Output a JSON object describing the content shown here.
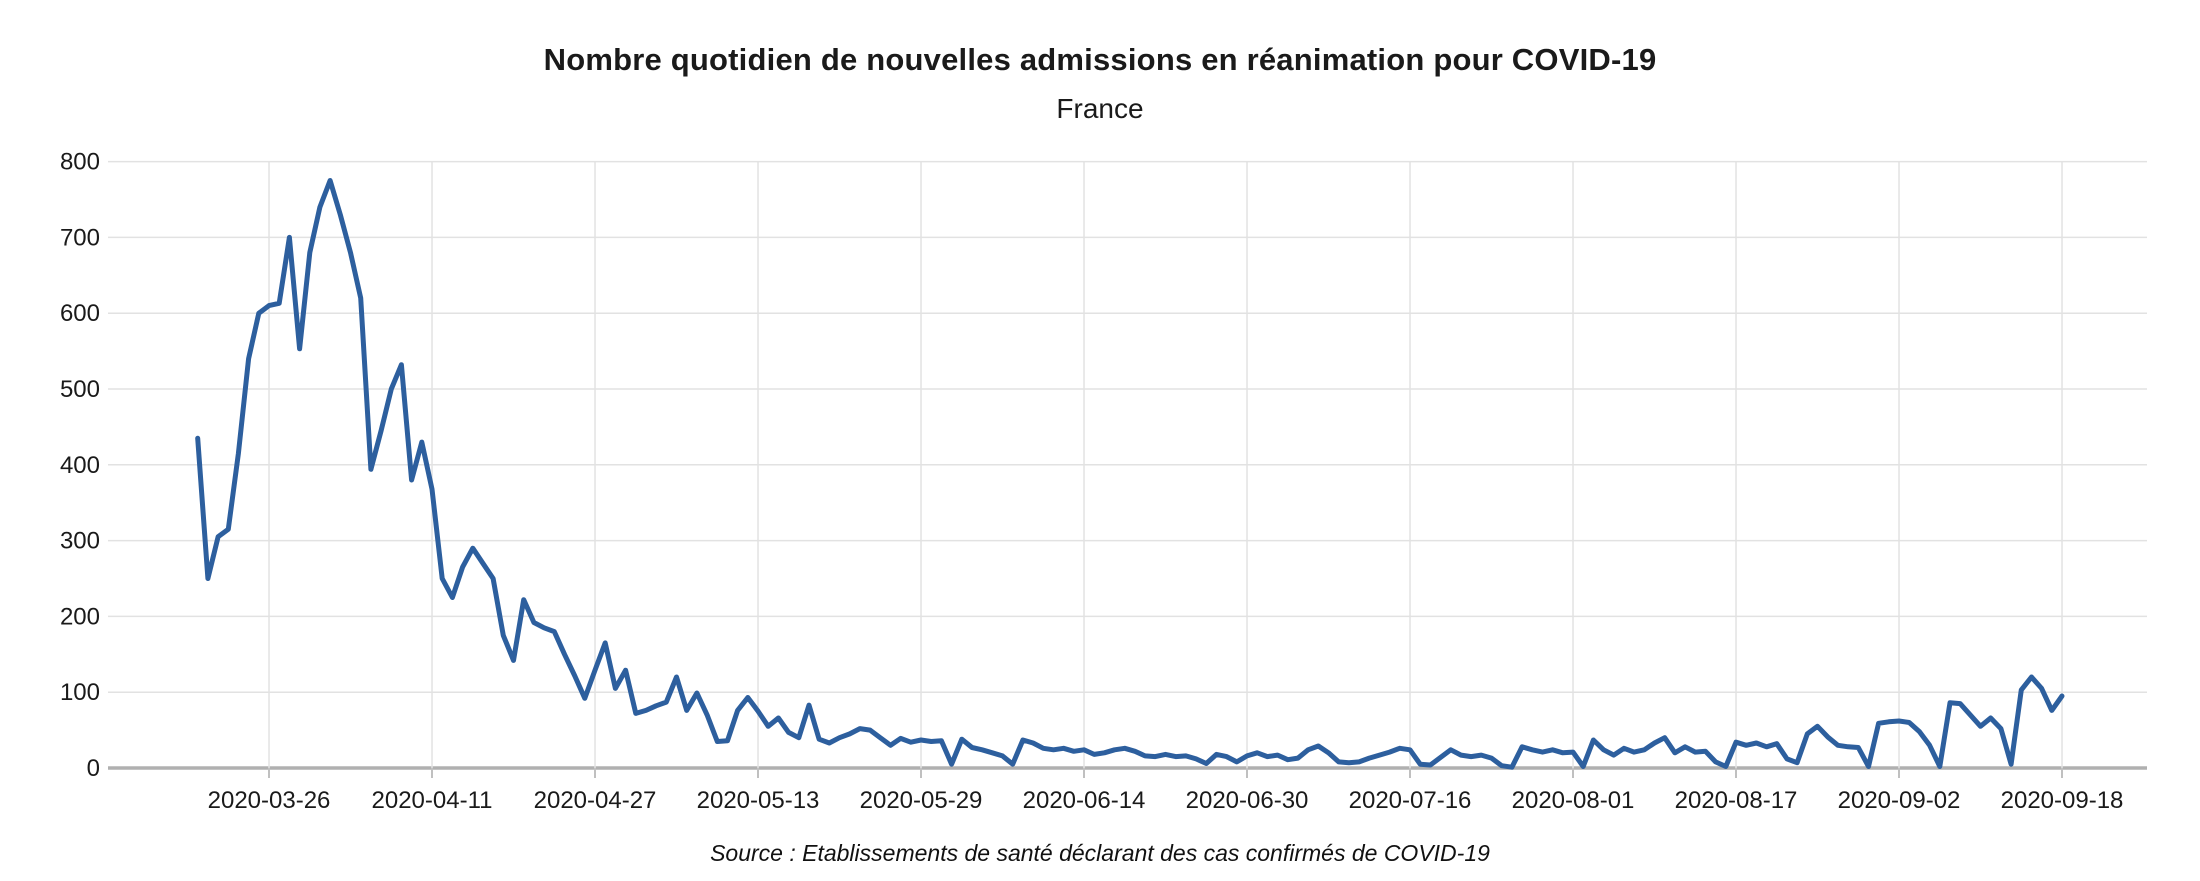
{
  "chart_data": {
    "type": "line",
    "title": "Nombre quotidien de nouvelles admissions en réanimation pour COVID-19",
    "subtitle": "France",
    "source": "Source : Etablissements de santé déclarant des cas confirmés de COVID-19",
    "ylim": [
      0,
      800
    ],
    "grid": true,
    "legend_position": "none",
    "line_color": "#2d5f9e",
    "grid_color": "#e2e2e2",
    "axis_color": "#b0b0b0",
    "tick_color": "#c0c0c0",
    "text_color": "#1a1a1a",
    "y_tick_labels": [
      0,
      100,
      200,
      300,
      400,
      500,
      600,
      700,
      800
    ],
    "x_tick_labels": [
      "2020-03-26",
      "2020-04-11",
      "2020-04-27",
      "2020-05-13",
      "2020-05-29",
      "2020-06-14",
      "2020-06-30",
      "2020-07-16",
      "2020-08-01",
      "2020-08-17",
      "2020-09-02",
      "2020-09-18"
    ],
    "series": [
      {
        "start_date": "2020-03-19",
        "end_date": "2020-09-18",
        "frequency": "daily",
        "values": [
          435,
          250,
          305,
          315,
          415,
          540,
          600,
          610,
          613,
          700,
          553,
          680,
          740,
          775,
          730,
          680,
          620,
          394,
          445,
          500,
          532,
          380,
          430,
          368,
          250,
          225,
          265,
          290,
          270,
          250,
          175,
          142,
          222,
          192,
          185,
          180,
          150,
          122,
          92,
          129,
          165,
          105,
          129,
          72,
          76,
          82,
          87,
          120,
          76,
          99,
          70,
          35,
          36,
          76,
          93,
          75,
          55,
          66,
          47,
          40,
          83,
          38,
          33,
          40,
          45,
          52,
          50,
          40,
          30,
          39,
          34,
          37,
          35,
          36,
          5,
          38,
          27,
          24,
          20,
          16,
          5,
          37,
          33,
          26,
          24,
          26,
          22,
          24,
          18,
          20,
          24,
          26,
          22,
          16,
          15,
          18,
          15,
          16,
          12,
          6,
          18,
          15,
          8,
          16,
          20,
          15,
          17,
          11,
          13,
          24,
          29,
          20,
          8,
          7,
          8,
          13,
          17,
          21,
          26,
          24,
          5,
          4,
          14,
          24,
          17,
          15,
          17,
          13,
          3,
          1,
          28,
          24,
          21,
          24,
          20,
          21,
          2,
          37,
          24,
          17,
          26,
          21,
          24,
          33,
          40,
          20,
          28,
          21,
          22,
          8,
          2,
          34,
          30,
          33,
          28,
          32,
          12,
          7,
          45,
          55,
          41,
          30,
          28,
          27,
          2,
          59,
          61,
          62,
          60,
          48,
          30,
          2,
          86,
          85,
          70,
          55,
          66,
          52,
          5,
          103,
          120,
          105,
          76,
          95
        ]
      }
    ]
  }
}
